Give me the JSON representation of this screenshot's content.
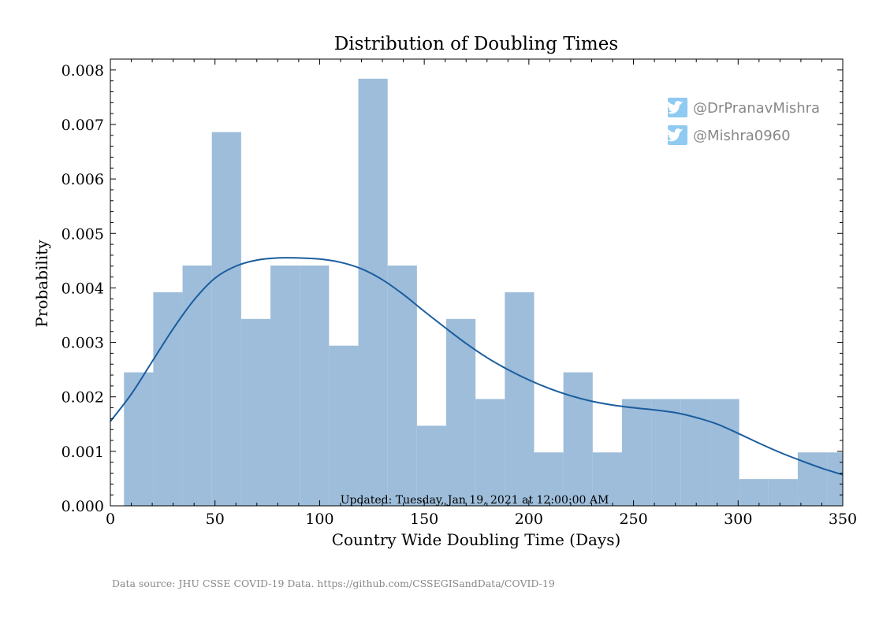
{
  "chart_data": {
    "type": "bar",
    "title": "Distribution of Doubling Times",
    "xlabel": "Country Wide Doubling Time (Days)",
    "ylabel": "Probability",
    "xlim": [
      0,
      350
    ],
    "ylim": [
      0,
      0.0082
    ],
    "xticks": [
      0,
      50,
      100,
      150,
      200,
      250,
      300,
      350
    ],
    "xtick_labels": [
      "0",
      "50",
      "100",
      "150",
      "200",
      "250",
      "300",
      "350"
    ],
    "yticks": [
      0,
      0.001,
      0.002,
      0.003,
      0.004,
      0.005,
      0.006,
      0.007,
      0.008
    ],
    "ytick_labels": [
      "0.000",
      "0.001",
      "0.002",
      "0.003",
      "0.004",
      "0.005",
      "0.006",
      "0.007",
      "0.008"
    ],
    "histogram": {
      "bin_edges": [
        6.5,
        20.5,
        34.5,
        48.5,
        62.5,
        76.5,
        90.5,
        104.5,
        118.5,
        132.5,
        146.5,
        160.5,
        174.5,
        188.5,
        202.5,
        216.5,
        230.5,
        244.5,
        258.5,
        272.5,
        286.5,
        300.5,
        314.5,
        328.5,
        342.5,
        356.5
      ],
      "values": [
        0.00245,
        0.00392,
        0.00441,
        0.00686,
        0.00343,
        0.00441,
        0.00441,
        0.00294,
        0.00784,
        0.00441,
        0.00147,
        0.00343,
        0.00196,
        0.00392,
        0.00098,
        0.00245,
        0.00098,
        0.00196,
        0.00196,
        0.00196,
        0.00196,
        0.00049,
        0.00049,
        0.00098,
        0.00098
      ],
      "color": "#9dbdda"
    },
    "kde": {
      "x": [
        0,
        10,
        20,
        30,
        40,
        50,
        60,
        70,
        80,
        90,
        100,
        110,
        120,
        130,
        140,
        150,
        160,
        170,
        180,
        190,
        200,
        210,
        220,
        230,
        240,
        250,
        260,
        270,
        280,
        290,
        300,
        310,
        320,
        330,
        340,
        350
      ],
      "y": [
        0.00155,
        0.00205,
        0.00265,
        0.00325,
        0.00378,
        0.00418,
        0.0044,
        0.00451,
        0.00455,
        0.00455,
        0.00453,
        0.00447,
        0.00435,
        0.00415,
        0.00388,
        0.00357,
        0.00327,
        0.00298,
        0.00272,
        0.0025,
        0.00231,
        0.00215,
        0.00202,
        0.00192,
        0.00185,
        0.0018,
        0.00176,
        0.00171,
        0.00162,
        0.0015,
        0.00133,
        0.00115,
        0.00098,
        0.00083,
        0.00069,
        0.00057
      ],
      "color": "#1a5d9e"
    },
    "annotation": "Updated: Tuesday, Jan 19, 2021 at 12:00:00 AM",
    "grid": false,
    "legend": "none"
  },
  "social": {
    "handles": [
      "@DrPranavMishra",
      "@Mishra0960"
    ],
    "icon": "twitter-bird-icon",
    "icon_color": "#8ecaf2",
    "text_color": "#888888"
  },
  "footer": {
    "source": "Data source: JHU CSSE COVID-19 Data. https://github.com/CSSEGISandData/COVID-19"
  }
}
